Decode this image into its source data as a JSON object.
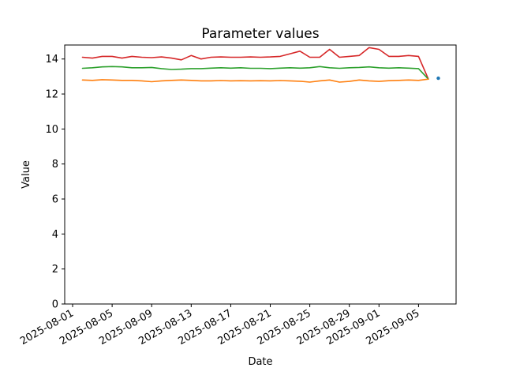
{
  "chart_data": {
    "type": "line",
    "title": "Parameter values",
    "xlabel": "Date",
    "ylabel": "Value",
    "grid": false,
    "legend": "none",
    "ylim": [
      0,
      14.8
    ],
    "xlim_pad_days": 1.8,
    "yticks": [
      0,
      2,
      4,
      6,
      8,
      10,
      12,
      14
    ],
    "xticks": [
      "2025-08-01",
      "2025-08-05",
      "2025-08-09",
      "2025-08-13",
      "2025-08-17",
      "2025-08-21",
      "2025-08-25",
      "2025-08-29",
      "2025-09-01",
      "2025-09-05"
    ],
    "x": [
      "2025-08-02",
      "2025-08-03",
      "2025-08-04",
      "2025-08-05",
      "2025-08-06",
      "2025-08-07",
      "2025-08-08",
      "2025-08-09",
      "2025-08-10",
      "2025-08-11",
      "2025-08-12",
      "2025-08-13",
      "2025-08-14",
      "2025-08-15",
      "2025-08-16",
      "2025-08-17",
      "2025-08-18",
      "2025-08-19",
      "2025-08-20",
      "2025-08-21",
      "2025-08-22",
      "2025-08-23",
      "2025-08-24",
      "2025-08-25",
      "2025-08-26",
      "2025-08-27",
      "2025-08-28",
      "2025-08-29",
      "2025-08-30",
      "2025-08-31",
      "2025-09-01",
      "2025-09-02",
      "2025-09-03",
      "2025-09-04",
      "2025-09-05",
      "2025-09-06"
    ],
    "series": [
      {
        "name": "red",
        "color": "#d62728",
        "values": [
          14.1,
          14.05,
          14.15,
          14.15,
          14.05,
          14.15,
          14.1,
          14.08,
          14.12,
          14.05,
          13.95,
          14.2,
          14.0,
          14.1,
          14.12,
          14.1,
          14.1,
          14.12,
          14.1,
          14.12,
          14.15,
          14.3,
          14.45,
          14.1,
          14.1,
          14.55,
          14.1,
          14.15,
          14.2,
          14.65,
          14.55,
          14.15,
          14.15,
          14.2,
          14.15,
          12.85
        ]
      },
      {
        "name": "green",
        "color": "#2ca02c",
        "values": [
          13.47,
          13.5,
          13.55,
          13.57,
          13.55,
          13.5,
          13.5,
          13.52,
          13.45,
          13.4,
          13.42,
          13.45,
          13.45,
          13.48,
          13.5,
          13.48,
          13.5,
          13.47,
          13.47,
          13.45,
          13.48,
          13.5,
          13.48,
          13.5,
          13.57,
          13.5,
          13.47,
          13.5,
          13.52,
          13.55,
          13.5,
          13.48,
          13.5,
          13.48,
          13.45,
          12.85
        ]
      },
      {
        "name": "orange",
        "color": "#ff7f0e",
        "values": [
          12.8,
          12.78,
          12.82,
          12.8,
          12.78,
          12.78,
          12.75,
          12.7,
          12.75,
          12.78,
          12.8,
          12.78,
          12.75,
          12.75,
          12.77,
          12.75,
          12.76,
          12.75,
          12.76,
          12.75,
          12.77,
          12.75,
          12.73,
          12.68,
          12.75,
          12.8,
          12.68,
          12.72,
          12.8,
          12.75,
          12.72,
          12.76,
          12.78,
          12.8,
          12.78,
          12.85
        ]
      }
    ],
    "scatter": [
      {
        "name": "blue",
        "color": "#1f77b4",
        "x": "2025-09-07",
        "y": 12.9
      }
    ]
  }
}
